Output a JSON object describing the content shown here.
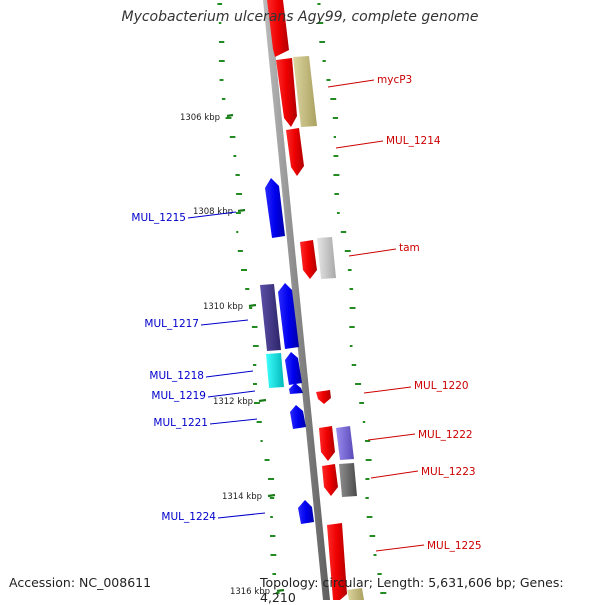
{
  "title": "Mycobacterium ulcerans Agy99, complete genome",
  "footer": {
    "accession": "Accession: NC_008611",
    "summary": "Topology: circular; Length: 5,631,606 bp; Genes: 4,210"
  },
  "ticks": [
    "1306 kbp",
    "1308 kbp",
    "1310 kbp",
    "1312 kbp",
    "1314 kbp",
    "1316 kbp"
  ],
  "genes_forward": [
    {
      "label": "mycP3",
      "color": "#cc0000"
    },
    {
      "label": "MUL_1214",
      "color": "#cc0000"
    },
    {
      "label": "tam",
      "color": "#cc0000"
    },
    {
      "label": "MUL_1220",
      "color": "#cc0000"
    },
    {
      "label": "MUL_1222",
      "color": "#cc0000"
    },
    {
      "label": "MUL_1223",
      "color": "#cc0000"
    },
    {
      "label": "MUL_1225",
      "color": "#cc0000"
    }
  ],
  "genes_reverse": [
    {
      "label": "MUL_1215",
      "color": "#0000cc"
    },
    {
      "label": "MUL_1217",
      "color": "#0000cc"
    },
    {
      "label": "MUL_1218",
      "color": "#0000cc"
    },
    {
      "label": "MUL_1219",
      "color": "#0000cc"
    },
    {
      "label": "MUL_1221",
      "color": "#0000cc"
    },
    {
      "label": "MUL_1224",
      "color": "#0000cc"
    }
  ],
  "colors": {
    "forward_cds": "#ee0000",
    "reverse_cds": "#0000ee",
    "backbone": "#808080",
    "gc_skew_dots": "#228b22",
    "cog_olive": "#c8c080",
    "cog_grey": "#c8c8c8",
    "cog_dark_grey": "#707070",
    "cog_purple": "#4a3d8f",
    "cog_light_purple": "#7a6ad8",
    "cog_cyan": "#00e0e0"
  }
}
